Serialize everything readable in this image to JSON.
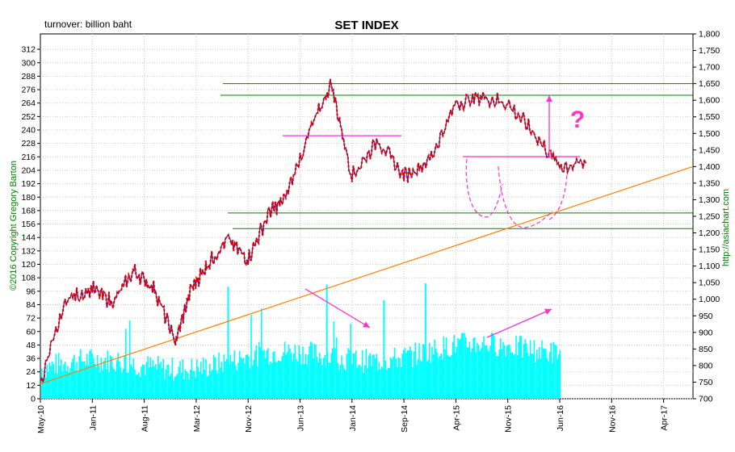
{
  "chart_data": {
    "type": "line",
    "title": "SET INDEX",
    "subtitle": "turnover: billion baht",
    "copyright": "©2016 Copyright Gregory Barton",
    "source": "http://asiachart.com",
    "annotation_text": "?",
    "ylim_left": [
      0,
      320
    ],
    "ylim_right": [
      700,
      1800
    ],
    "left_ticks": [
      0,
      12,
      24,
      36,
      48,
      60,
      72,
      84,
      96,
      108,
      120,
      132,
      144,
      156,
      168,
      180,
      192,
      204,
      216,
      228,
      240,
      252,
      264,
      276,
      288,
      300,
      312
    ],
    "right_ticks": [
      700,
      750,
      800,
      850,
      900,
      950,
      1000,
      1050,
      1100,
      1150,
      1200,
      1250,
      1300,
      1350,
      1400,
      1450,
      1500,
      1550,
      1600,
      1650,
      1700,
      1750,
      1800
    ],
    "x_ticks": [
      "May-10",
      "Jan-11",
      "Aug-11",
      "Mar-12",
      "Nov-12",
      "Jun-13",
      "Jan-14",
      "Sep-14",
      "Apr-15",
      "Nov-15",
      "Jun-16",
      "Nov-16",
      "Apr-17"
    ],
    "grid": true,
    "series": [
      {
        "type": "line",
        "axis": "right",
        "color": "#e00000",
        "x_index": [
          0,
          0.5,
          1,
          1.4,
          1.8,
          2.2,
          2.6,
          2.9,
          3.2,
          3.6,
          4,
          4.4,
          4.7,
          5.2,
          5.6,
          6,
          6.5,
          7,
          7.5,
          8,
          8.5,
          9,
          9.5,
          10,
          10.5
        ],
        "values": [
          745,
          1000,
          1030,
          990,
          1085,
          1030,
          870,
          1030,
          1100,
          1180,
          1120,
          1260,
          1300,
          1510,
          1650,
          1370,
          1480,
          1370,
          1420,
          1590,
          1610,
          1590,
          1500,
          1400,
          1410
        ]
      },
      {
        "type": "bar",
        "axis": "left",
        "name": "turnover",
        "color": "#00ffff",
        "x_range": [
          "May-10",
          "Jun-16"
        ],
        "typical_range": [
          25,
          55
        ],
        "peaks": [
          75,
          102,
          103,
          80
        ]
      }
    ],
    "reference_lines": [
      {
        "type": "horizontal",
        "axis": "right",
        "value": 1650,
        "color": "#008000"
      },
      {
        "type": "horizontal",
        "axis": "right",
        "value": 1615,
        "color": "#008000"
      },
      {
        "type": "horizontal",
        "axis": "right",
        "value": 1260,
        "color": "#008000"
      },
      {
        "type": "horizontal",
        "axis": "right",
        "value": 1213,
        "color": "#008000"
      },
      {
        "type": "horizontal",
        "axis": "right",
        "value": 1493,
        "color": "#ff33cc"
      },
      {
        "type": "horizontal",
        "axis": "right",
        "value": 1430,
        "color": "#ff33cc"
      },
      {
        "type": "trendline",
        "axis": "right",
        "value_start": 745,
        "value_end": 1400,
        "color": "#ff8000"
      }
    ]
  }
}
